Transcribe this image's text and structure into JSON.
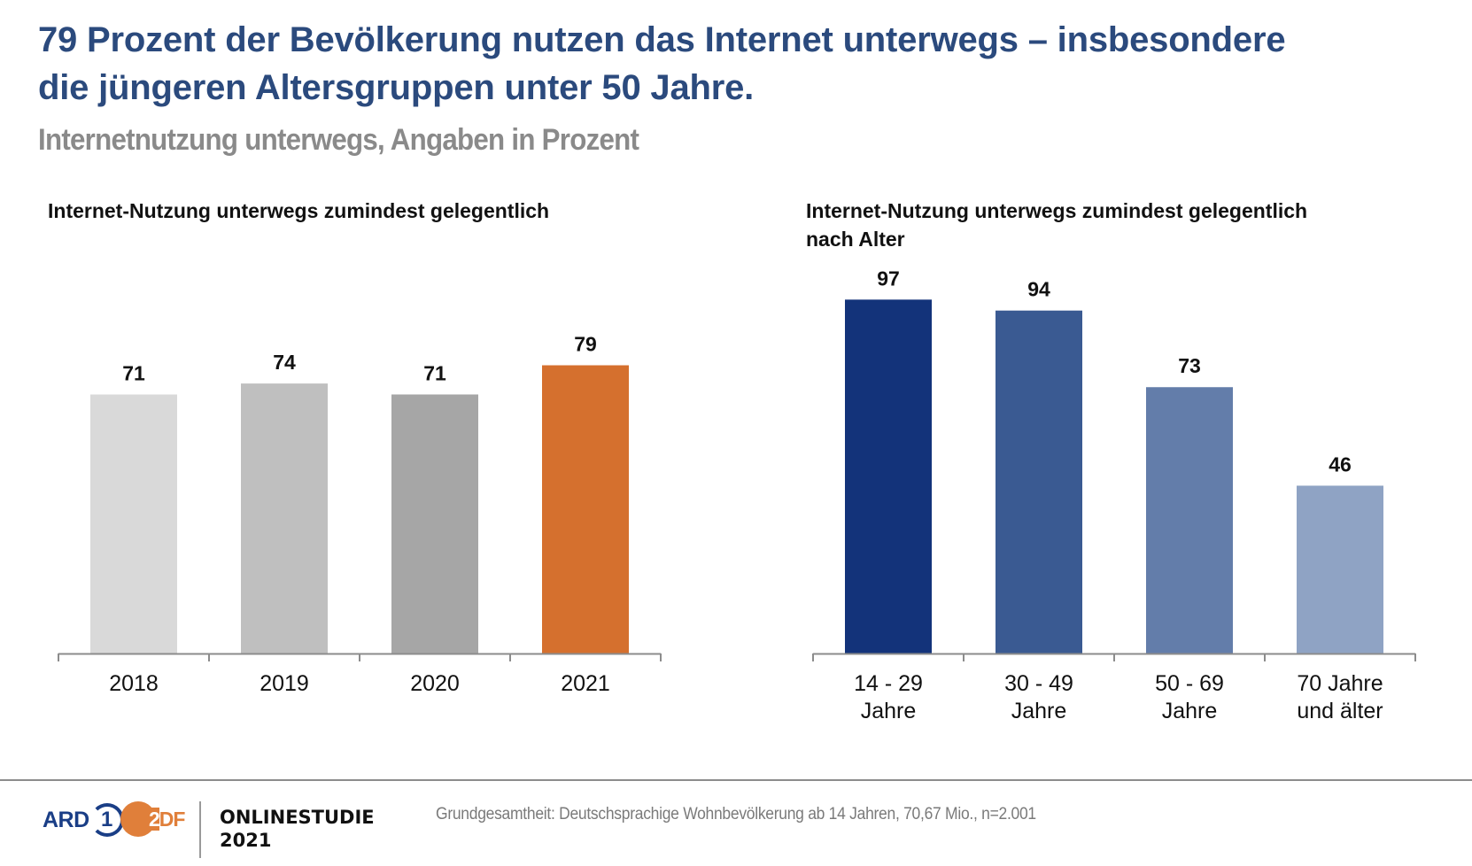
{
  "headline": {
    "line1": "79 Prozent der Bevölkerung nutzen das Internet unterwegs – insbesondere",
    "line2": "die jüngeren Altersgruppen unter 50 Jahre."
  },
  "subtitle": "Internetnutzung unterwegs, Angaben in Prozent",
  "colors": {
    "headline": "#2b4a7d",
    "subtitle": "#8a8a8a",
    "axis": "#8c8c8c"
  },
  "chart_data": [
    {
      "type": "bar",
      "title": "Internet-Nutzung unterwegs zumindest gelegentlich",
      "xlabel": "",
      "ylabel": "",
      "categories": [
        "2018",
        "2019",
        "2020",
        "2021"
      ],
      "values": [
        71,
        74,
        71,
        79
      ],
      "bar_colors": [
        "#d9d9d9",
        "#bfbfbf",
        "#a6a6a6",
        "#d5702e"
      ],
      "data_labels": [
        "71",
        "74",
        "71",
        "79"
      ],
      "ylim": [
        0,
        100
      ],
      "grid": false,
      "legend": "none"
    },
    {
      "type": "bar",
      "title": "Internet-Nutzung unterwegs zumindest gelegentlich",
      "title_line2": "nach Alter",
      "xlabel": "",
      "ylabel": "",
      "categories": [
        [
          "14 - 29",
          "Jahre"
        ],
        [
          "30 - 49",
          "Jahre"
        ],
        [
          "50 - 69",
          "Jahre"
        ],
        [
          "70 Jahre",
          "und älter"
        ]
      ],
      "values": [
        97,
        94,
        73,
        46
      ],
      "bar_colors": [
        "#13337a",
        "#3a5a92",
        "#637daa",
        "#8fa3c4"
      ],
      "data_labels": [
        "97",
        "94",
        "73",
        "46"
      ],
      "ylim": [
        0,
        100
      ],
      "grid": false,
      "legend": "none"
    }
  ],
  "footer": {
    "ard_text": "ARD",
    "ard_number": "1",
    "zdf_text_2": "2",
    "zdf_text_rest": "DF",
    "study_line1": "ONLINESTUDIE",
    "study_line2": "2021",
    "footnote": "Grundgesamtheit: Deutschsprachige Wohnbevölkerung ab 14 Jahren, 70,67 Mio., n=2.001"
  }
}
